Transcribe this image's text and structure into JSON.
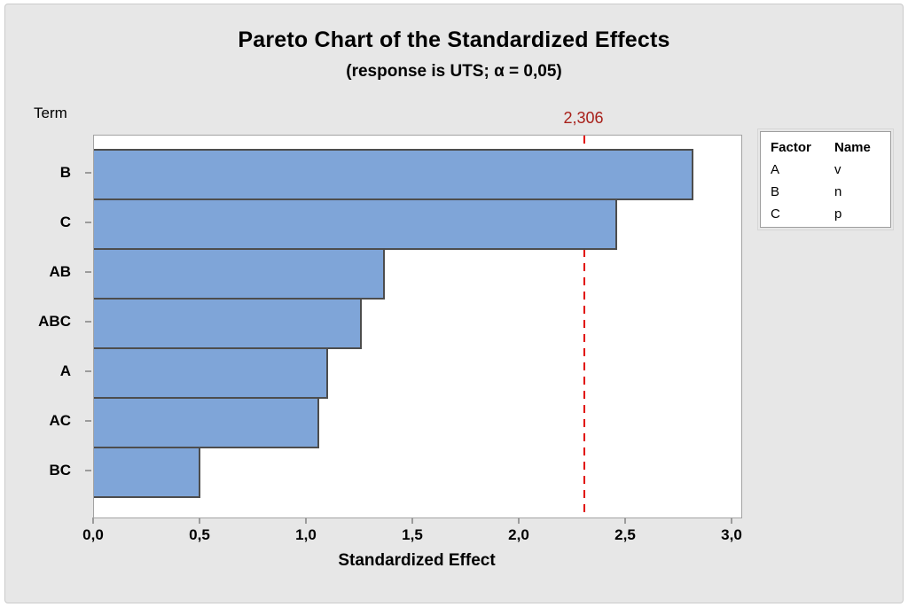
{
  "title": "Pareto Chart of the Standardized Effects",
  "subtitle": "(response is UTS; α = 0,05)",
  "y_axis_title": "Term",
  "x_axis_title": "Standardized Effect",
  "reference": {
    "label": "2,306",
    "value": 2.306
  },
  "legend": {
    "headers": [
      "Factor",
      "Name"
    ],
    "rows": [
      {
        "factor": "A",
        "name": "v"
      },
      {
        "factor": "B",
        "name": "n"
      },
      {
        "factor": "C",
        "name": "p"
      }
    ]
  },
  "chart_data": {
    "type": "bar",
    "orientation": "horizontal",
    "title": "Pareto Chart of the Standardized Effects",
    "subtitle": "(response is UTS; α = 0,05)",
    "xlabel": "Standardized Effect",
    "ylabel": "Term",
    "categories": [
      "B",
      "C",
      "AB",
      "ABC",
      "A",
      "AC",
      "BC"
    ],
    "values": [
      2.81,
      2.45,
      1.36,
      1.25,
      1.09,
      1.05,
      0.49
    ],
    "xlim": [
      0.0,
      3.0
    ],
    "x_tick_values": [
      0.0,
      0.5,
      1.0,
      1.5,
      2.0,
      2.5,
      3.0
    ],
    "x_tick_labels": [
      "0,0",
      "0,5",
      "1,0",
      "1,5",
      "2,0",
      "2,5",
      "3,0"
    ],
    "reference_line": 2.306,
    "reference_label": "2,306",
    "grid": false,
    "legend_position": "outside-top-right",
    "colors": {
      "bar_fill": "#7FA5D8",
      "bar_border": "#4D4D4D",
      "reference_line": "#E10600",
      "reference_label_color": "#A8201A",
      "plot_frame": "#A3A3A3",
      "figure_background": "#E7E7E7"
    }
  }
}
